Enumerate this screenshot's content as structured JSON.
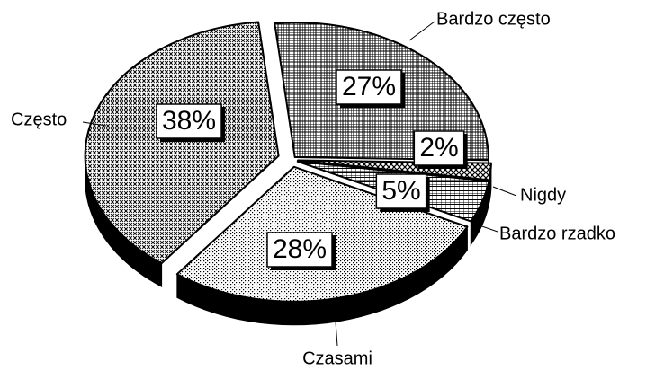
{
  "chart_data": {
    "type": "pie",
    "categories": [
      "Bardzo często",
      "Nigdy",
      "Bardzo rzadko",
      "Czasami",
      "Często"
    ],
    "values": [
      27,
      2,
      5,
      28,
      38
    ],
    "value_labels": [
      "27%",
      "2%",
      "5%",
      "28%",
      "38%"
    ]
  }
}
